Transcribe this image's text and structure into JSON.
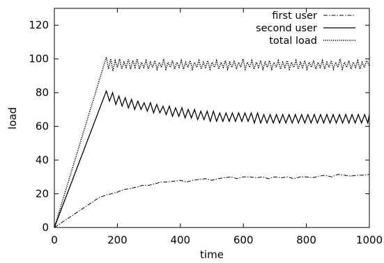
{
  "chart_data": {
    "type": "line",
    "title": "",
    "xlabel": "time",
    "ylabel": "load",
    "xlim": [
      0,
      1000
    ],
    "ylim": [
      0,
      130
    ],
    "xticks": [
      0,
      200,
      400,
      600,
      800,
      1000
    ],
    "yticks": [
      0,
      20,
      40,
      60,
      80,
      100,
      120
    ],
    "grid": false,
    "legend_position": "top-right",
    "series": [
      {
        "name": "first user",
        "style": "dash-dot",
        "x": [
          0,
          20,
          40,
          60,
          80,
          100,
          120,
          140,
          160,
          180,
          200,
          220,
          240,
          260,
          280,
          300,
          320,
          340,
          360,
          380,
          400,
          420,
          440,
          460,
          480,
          500,
          520,
          540,
          560,
          580,
          600,
          620,
          640,
          660,
          680,
          700,
          720,
          740,
          760,
          780,
          800,
          820,
          840,
          860,
          880,
          900,
          920,
          940,
          960,
          980,
          1000
        ],
        "y": [
          0,
          2.5,
          5,
          7.5,
          10,
          12.5,
          15,
          17.5,
          19,
          20,
          21,
          22.5,
          23,
          24,
          25,
          25,
          26,
          27,
          27,
          27.5,
          28,
          27,
          28,
          28.5,
          29,
          28,
          29,
          29.5,
          30,
          29,
          30,
          30,
          29.5,
          30,
          29,
          30,
          29.5,
          30,
          29,
          30,
          30,
          29.5,
          30.5,
          31,
          30,
          31.5,
          31,
          30.5,
          31,
          31,
          31.5
        ]
      },
      {
        "name": "second user",
        "style": "solid",
        "x": [
          0,
          165,
          175,
          185,
          195,
          205,
          215,
          225,
          235,
          245,
          255,
          265,
          275,
          285,
          295,
          305,
          315,
          325,
          335,
          345,
          355,
          365,
          375,
          385,
          395,
          405,
          415,
          425,
          435,
          445,
          455,
          465,
          475,
          485,
          495,
          505,
          515,
          525,
          535,
          545,
          555,
          565,
          575,
          585,
          595,
          605,
          615,
          625,
          635,
          645,
          655,
          665,
          675,
          685,
          695,
          705,
          715,
          725,
          735,
          745,
          755,
          765,
          775,
          785,
          795,
          805,
          815,
          825,
          835,
          845,
          855,
          865,
          875,
          885,
          895,
          905,
          915,
          925,
          935,
          945,
          955,
          965,
          975,
          985,
          995,
          1000
        ],
        "y": [
          0,
          81,
          75,
          80,
          73,
          78,
          72,
          77,
          71,
          76,
          70,
          75,
          70,
          74,
          69,
          74,
          68,
          73,
          68,
          72,
          67,
          72,
          66,
          71,
          66,
          71,
          65,
          70,
          65,
          70,
          64,
          69,
          64,
          69,
          63,
          69,
          63,
          68,
          63,
          68,
          63,
          68,
          63,
          68,
          63,
          68,
          63,
          68,
          62,
          68,
          62,
          67,
          62,
          67,
          62,
          67,
          62,
          67,
          62,
          67,
          62,
          67,
          62,
          67,
          62,
          67,
          62,
          67,
          62,
          67,
          62,
          67,
          62,
          67,
          62,
          67,
          62,
          67,
          62,
          67,
          62,
          67,
          62,
          67,
          62,
          67
        ]
      },
      {
        "name": "total load",
        "style": "dotted",
        "x": [
          0,
          165,
          172,
          179,
          186,
          193,
          200,
          207,
          214,
          221,
          228,
          235,
          242,
          249,
          256,
          263,
          270,
          277,
          284,
          291,
          298,
          305,
          312,
          319,
          326,
          333,
          340,
          347,
          354,
          361,
          368,
          375,
          382,
          389,
          396,
          403,
          410,
          417,
          424,
          431,
          438,
          445,
          452,
          459,
          466,
          473,
          480,
          487,
          494,
          501,
          508,
          515,
          522,
          529,
          536,
          543,
          550,
          557,
          564,
          571,
          578,
          585,
          592,
          599,
          606,
          613,
          620,
          627,
          634,
          641,
          648,
          655,
          662,
          669,
          676,
          683,
          690,
          697,
          704,
          711,
          718,
          725,
          732,
          739,
          746,
          753,
          760,
          767,
          774,
          781,
          788,
          795,
          802,
          809,
          816,
          823,
          830,
          837,
          844,
          851,
          858,
          865,
          872,
          879,
          886,
          893,
          900,
          907,
          914,
          921,
          928,
          935,
          942,
          949,
          956,
          963,
          970,
          977,
          984,
          991,
          1000
        ],
        "y": [
          0,
          101,
          94,
          100,
          93,
          99,
          95,
          100,
          94,
          98,
          95,
          100,
          94,
          99,
          95,
          100,
          94,
          98,
          95,
          99,
          94,
          98,
          95,
          99,
          94,
          98,
          95,
          100,
          94,
          98,
          95,
          99,
          94,
          98,
          95,
          99,
          94,
          98,
          95,
          99,
          94,
          98,
          95,
          99,
          94,
          98,
          95,
          99,
          94,
          98,
          95,
          99,
          94,
          98,
          95,
          99,
          94,
          98,
          95,
          99,
          94,
          98,
          95,
          100,
          94,
          98,
          95,
          99,
          94,
          98,
          95,
          99,
          94,
          98,
          95,
          99,
          94,
          98,
          95,
          99,
          94,
          98,
          95,
          99,
          94,
          98,
          95,
          99,
          94,
          98,
          95,
          99,
          94,
          98,
          95,
          99,
          94,
          98,
          95,
          99,
          94,
          98,
          95,
          99,
          94,
          98,
          95,
          100,
          94,
          98,
          95,
          99,
          94,
          98,
          95,
          99,
          94,
          98,
          95,
          99,
          96
        ]
      }
    ]
  }
}
